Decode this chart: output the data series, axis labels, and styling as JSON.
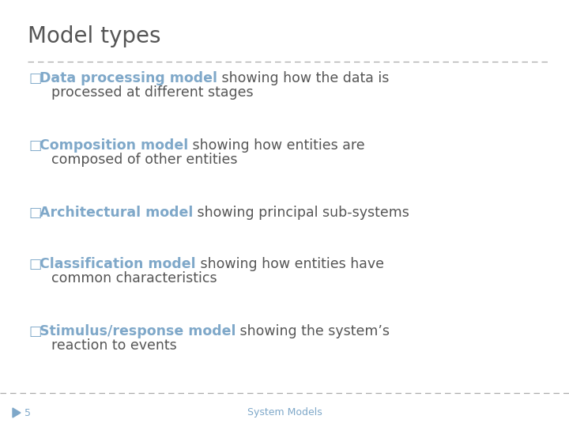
{
  "title": "Model types",
  "title_color": "#555555",
  "title_fontsize": 20,
  "background_color": "#ffffff",
  "highlight_color": "#7fa8c9",
  "normal_color": "#555555",
  "bullet_color": "#7fa8c9",
  "footer_number": "5",
  "footer_center": "System Models",
  "footer_color": "#7fa8c9",
  "divider_color": "#aaaaaa",
  "items": [
    {
      "bullet_label": "Data processing model",
      "rest_line1": " showing how the data is",
      "rest_line2": "processed at different stages"
    },
    {
      "bullet_label": "Composition model",
      "rest_line1": " showing how entities are",
      "rest_line2": "composed of other entities"
    },
    {
      "bullet_label": "Architectural model",
      "rest_line1": " showing principal sub-systems",
      "rest_line2": null
    },
    {
      "bullet_label": "Classification model",
      "rest_line1": " showing how entities have",
      "rest_line2": "common characteristics"
    },
    {
      "bullet_label": "Stimulus/response model",
      "rest_line1": " showing the system’s",
      "rest_line2": "reaction to events"
    }
  ],
  "item_fontsize": 12.5,
  "bullet_char": "□"
}
